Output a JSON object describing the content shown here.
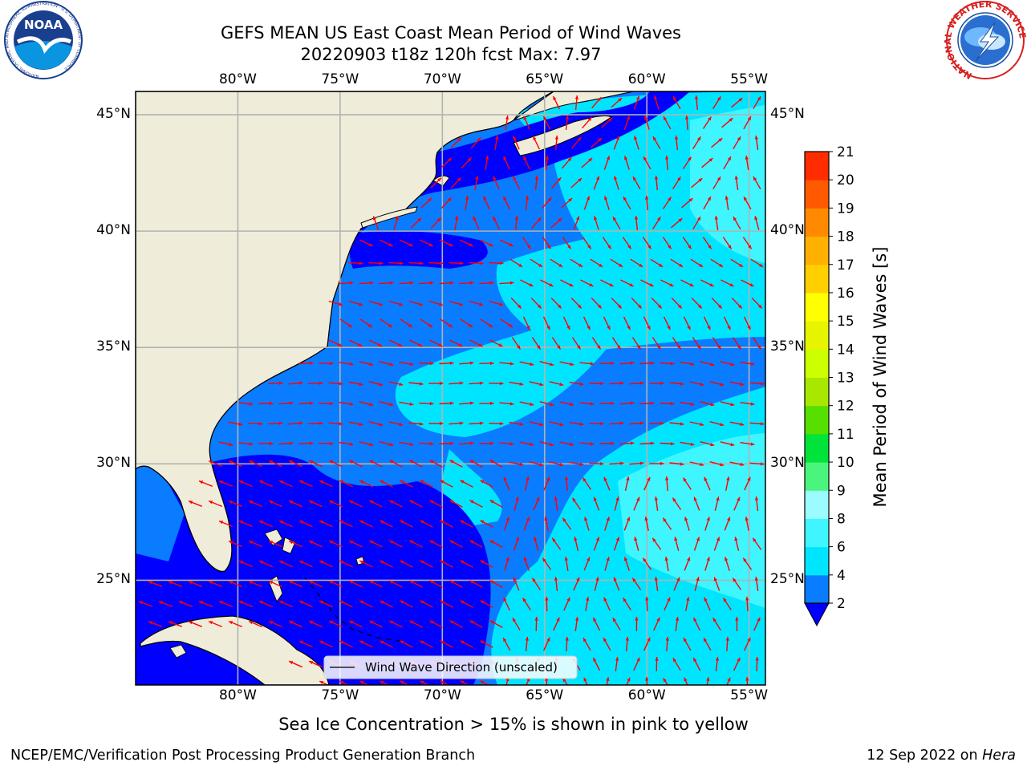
{
  "title": {
    "line1": "GEFS MEAN US East Coast Mean Period of Wind Waves",
    "line2": "20220903 t18z 120h fcst   Max: 7.97"
  },
  "logos": {
    "left": "NOAA",
    "left_ring_text": "NATIONAL OCEANIC AND ATMOSPHERIC ADMINISTRATION · U.S. DEPARTMENT OF COMMERCE",
    "right_ring_text": "NATIONAL WEATHER SERVICE"
  },
  "map": {
    "lon_labels": [
      "80°W",
      "75°W",
      "70°W",
      "65°W",
      "60°W",
      "55°W"
    ],
    "lon_values": [
      -80,
      -75,
      -70,
      -65,
      -60,
      -55
    ],
    "lat_labels": [
      "45°N",
      "40°N",
      "35°N",
      "30°N",
      "25°N"
    ],
    "lat_values": [
      45,
      40,
      35,
      30,
      25
    ],
    "lon_range": [
      -85,
      -54.2
    ],
    "lat_range": [
      20.5,
      46
    ],
    "grid": true,
    "legend_label": "Wind Wave Direction (unscaled)",
    "land_color": "#efedd9",
    "arrow_color": "#ff0000"
  },
  "colorbar": {
    "label": "Mean Period of Wind Waves [s]",
    "ticks": [
      "2",
      "4",
      "6",
      "8",
      "9",
      "10",
      "11",
      "12",
      "13",
      "14",
      "15",
      "16",
      "17",
      "18",
      "19",
      "20",
      "21"
    ],
    "under_color": "#0000ff",
    "colors": [
      "#0a7cff",
      "#00e5ff",
      "#3ff5ff",
      "#9bfbff",
      "#49f57d",
      "#00e33a",
      "#55e000",
      "#a8e800",
      "#ccff00",
      "#e6f400",
      "#ffff00",
      "#ffcf00",
      "#ffb000",
      "#ff8a00",
      "#ff5a00",
      "#ff2c00",
      "#ff0000"
    ],
    "levels": [
      2,
      4,
      6,
      8,
      9,
      10,
      11,
      12,
      13,
      14,
      15,
      16,
      17,
      18,
      19,
      20,
      21
    ]
  },
  "field_colors": {
    "lt2": "#0000ff",
    "2to4": "#0a7cff",
    "4to6": "#00e5ff",
    "6to8": "#3ff5ff",
    "8to9": "#9bfbff"
  },
  "note": "Sea Ice Concentration > 15% is shown in pink to yellow",
  "footer": {
    "left": "NCEP/EMC/Verification Post Processing Product Generation Branch",
    "right_date": "12 Sep 2022 on ",
    "right_machine": "Hera"
  }
}
